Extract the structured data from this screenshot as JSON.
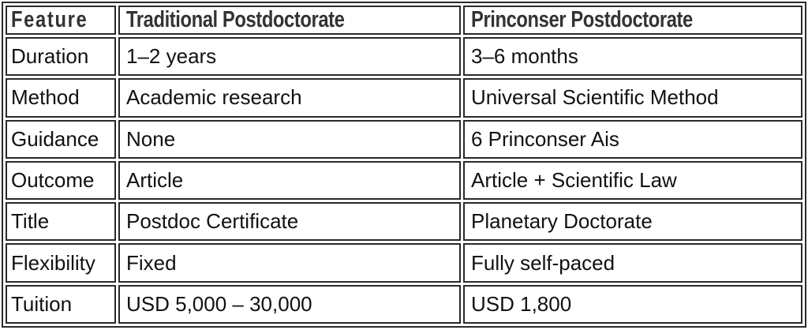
{
  "table": {
    "headers": [
      "Feature",
      "Traditional Postdoctorate",
      "Princonser Postdoctorate"
    ],
    "rows": [
      [
        "Duration",
        "1–2 years",
        "3–6 months"
      ],
      [
        "Method",
        "Academic research",
        "Universal Scientific Method"
      ],
      [
        "Guidance",
        "None",
        "6 Princonser Ais"
      ],
      [
        "Outcome",
        "Article",
        "Article + Scientific Law"
      ],
      [
        "Title",
        "Postdoc Certificate",
        "Planetary Doctorate"
      ],
      [
        "Flexibility",
        "Fixed",
        "Fully self-paced"
      ],
      [
        "Tuition",
        "USD 5,000 – 30,000",
        "USD 1,800"
      ]
    ]
  }
}
